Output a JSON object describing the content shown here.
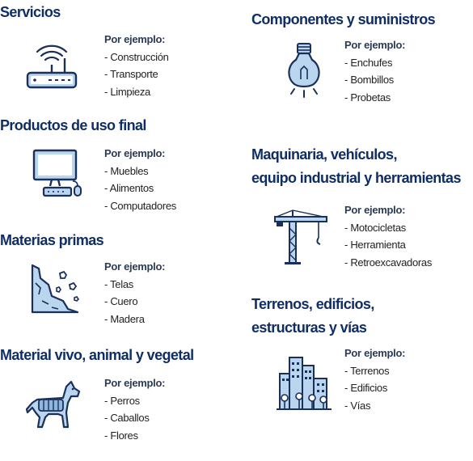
{
  "colors": {
    "title": "#0f2e66",
    "icon_stroke": "#1a2f5a",
    "icon_fill": "#b9d6ee"
  },
  "example_heading": "Por ejemplo:",
  "categories": [
    {
      "title": "Servicios",
      "icon": "wifi-router-icon",
      "examples": [
        "- Construcción",
        "- Transporte",
        "- Limpieza"
      ]
    },
    {
      "title": "Productos de uso final",
      "icon": "desktop-computer-icon",
      "examples": [
        "- Muebles",
        "- Alimentos",
        "- Computadores"
      ]
    },
    {
      "title": "Materias primas",
      "icon": "rock-slope-icon",
      "examples": [
        "- Telas",
        "- Cuero",
        "- Madera"
      ]
    },
    {
      "title": "Material vivo, animal y vegetal",
      "icon": "dog-icon",
      "examples": [
        "- Perros",
        "- Caballos",
        "- Flores"
      ]
    },
    {
      "title": "Componentes y suministros",
      "icon": "light-bulb-icon",
      "examples": [
        "- Enchufes",
        "- Bombillos",
        "- Probetas"
      ]
    },
    {
      "title_lines": [
        "Maquinaria, vehículos,",
        "equipo industrial y herramientas"
      ],
      "icon": "tower-crane-icon",
      "examples": [
        "- Motocicletas",
        "- Herramienta",
        "- Retroexcavadoras"
      ]
    },
    {
      "title_lines": [
        "Terrenos, edificios,",
        "estructuras y vías"
      ],
      "icon": "city-buildings-icon",
      "examples": [
        "- Terrenos",
        "- Edificios",
        "- Vías"
      ]
    }
  ]
}
